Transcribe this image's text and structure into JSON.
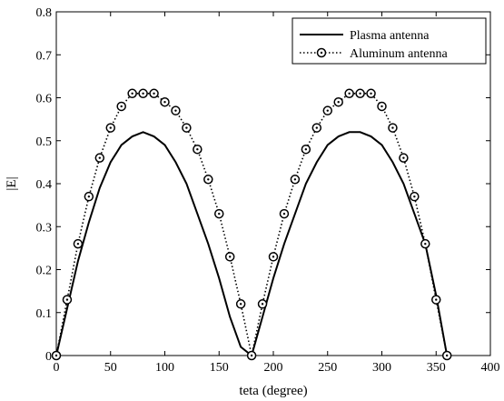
{
  "chart_data": {
    "type": "line",
    "xlabel": "teta (degree)",
    "ylabel": "|E|",
    "xlim": [
      0,
      400
    ],
    "ylim": [
      0,
      0.8
    ],
    "xticks": [
      0,
      50,
      100,
      150,
      200,
      250,
      300,
      350,
      400
    ],
    "yticks": [
      0,
      0.1,
      0.2,
      0.3,
      0.4,
      0.5,
      0.6,
      0.7,
      0.8
    ],
    "xtick_labels": [
      "0",
      "50",
      "100",
      "150",
      "200",
      "250",
      "300",
      "350",
      "400"
    ],
    "ytick_labels": [
      "0",
      "0.1",
      "0.2",
      "0.3",
      "0.4",
      "0.5",
      "0.6",
      "0.7",
      "0.8"
    ],
    "grid": false,
    "legend_position": "top-right",
    "series": [
      {
        "name": "Plasma antenna",
        "style": "solid",
        "color": "#000000",
        "x": [
          0,
          10,
          20,
          30,
          40,
          50,
          60,
          70,
          80,
          90,
          100,
          110,
          120,
          130,
          140,
          150,
          160,
          170,
          180,
          190,
          200,
          210,
          220,
          230,
          240,
          250,
          260,
          270,
          280,
          290,
          300,
          310,
          320,
          330,
          340,
          350,
          360
        ],
        "values": [
          0,
          0.11,
          0.22,
          0.31,
          0.39,
          0.45,
          0.49,
          0.51,
          0.52,
          0.51,
          0.49,
          0.45,
          0.4,
          0.33,
          0.26,
          0.18,
          0.09,
          0.02,
          0,
          0.09,
          0.18,
          0.26,
          0.33,
          0.4,
          0.45,
          0.49,
          0.51,
          0.52,
          0.52,
          0.51,
          0.49,
          0.45,
          0.4,
          0.33,
          0.26,
          0.14,
          0
        ]
      },
      {
        "name": "Aluminum antenna",
        "style": "dotted",
        "marker": "circle-dot",
        "color": "#000000",
        "x": [
          0,
          10,
          20,
          30,
          40,
          50,
          60,
          70,
          80,
          90,
          100,
          110,
          120,
          130,
          140,
          150,
          160,
          170,
          180,
          190,
          200,
          210,
          220,
          230,
          240,
          250,
          260,
          270,
          280,
          290,
          300,
          310,
          320,
          330,
          340,
          350,
          360
        ],
        "values": [
          0,
          0.13,
          0.26,
          0.37,
          0.46,
          0.53,
          0.58,
          0.61,
          0.61,
          0.61,
          0.59,
          0.57,
          0.53,
          0.48,
          0.41,
          0.33,
          0.23,
          0.12,
          0,
          0.12,
          0.23,
          0.33,
          0.41,
          0.48,
          0.53,
          0.57,
          0.59,
          0.61,
          0.61,
          0.61,
          0.58,
          0.53,
          0.46,
          0.37,
          0.26,
          0.13,
          0
        ]
      }
    ]
  }
}
